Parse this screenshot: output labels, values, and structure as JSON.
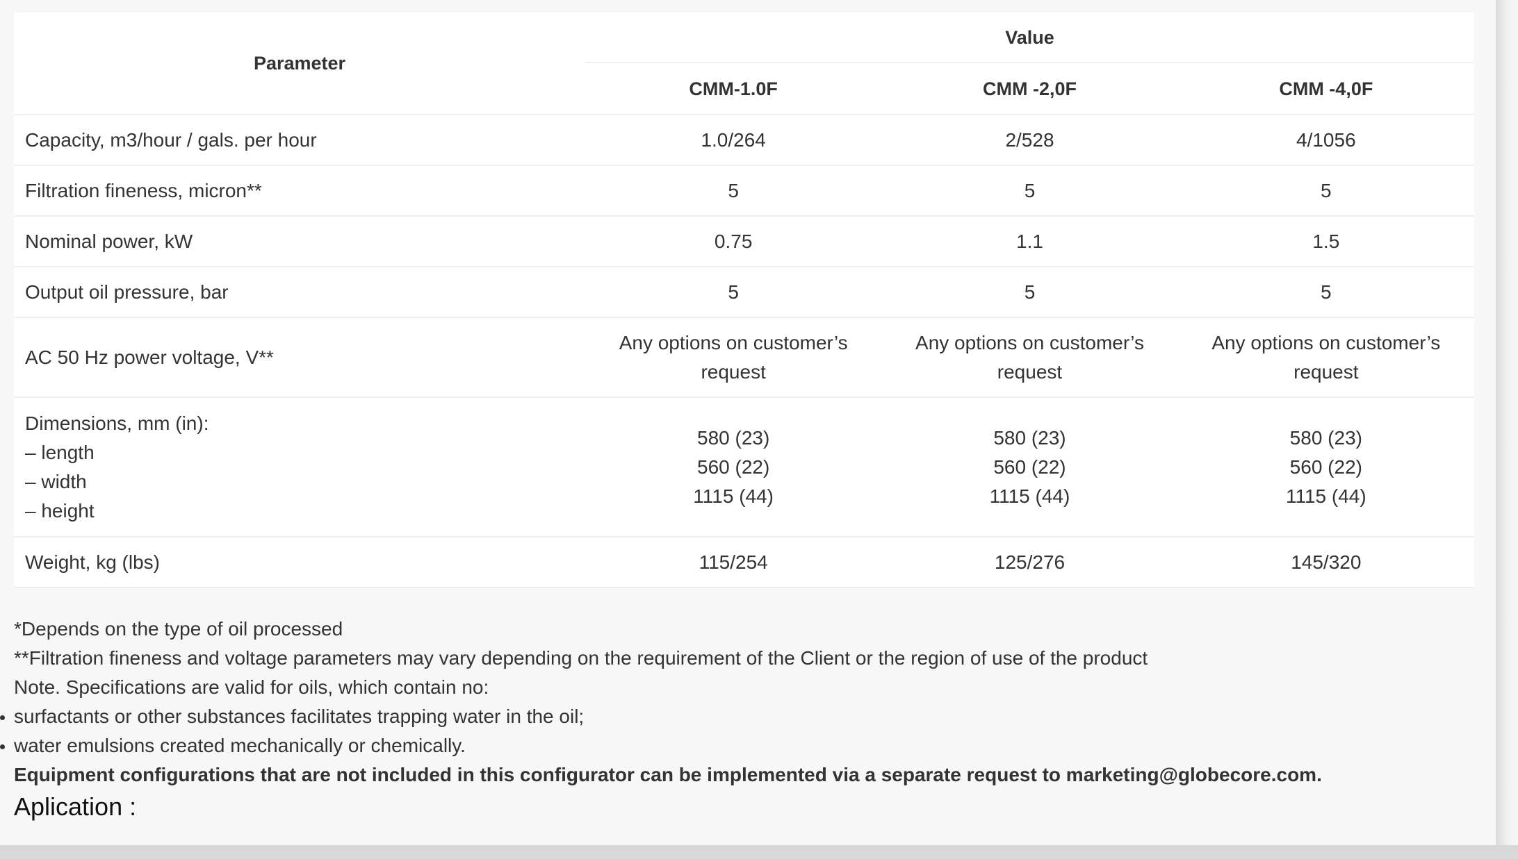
{
  "table": {
    "header": {
      "parameter": "Parameter",
      "value": "Value",
      "models": [
        "CMM-1.0F",
        "CMM -2,0F",
        "CMM -4,0F"
      ]
    },
    "rows": [
      {
        "param": "Capacity, m3/hour / gals. per hour",
        "values": [
          "1.0/264",
          "2/528",
          "4/1056"
        ]
      },
      {
        "param": "Filtration fineness, micron**",
        "values": [
          "5",
          "5",
          "5"
        ]
      },
      {
        "param": "Nominal power, kW",
        "values": [
          "0.75",
          "1.1",
          "1.5"
        ]
      },
      {
        "param": "Output oil pressure, bar",
        "values": [
          "5",
          "5",
          "5"
        ]
      },
      {
        "param": "AC 50 Hz power voltage, V**",
        "values": [
          "Any options on customer’s request",
          "Any options on customer’s request",
          "Any options on customer’s request"
        ]
      }
    ],
    "dimensions": {
      "param_lines": [
        "Dimensions, mm (in):",
        "– length",
        "– width",
        "– height"
      ],
      "values": [
        [
          "580 (23)",
          "560 (22)",
          "1115 (44)"
        ],
        [
          "580 (23)",
          "560 (22)",
          "1115 (44)"
        ],
        [
          "580 (23)",
          "560 (22)",
          "1115 (44)"
        ]
      ]
    },
    "weight": {
      "param": "Weight, kg (lbs)",
      "values": [
        "115/254",
        "125/276",
        "145/320"
      ]
    }
  },
  "notes": {
    "line1": "*Depends on the type of oil processed",
    "line2": "**Filtration fineness and voltage parameters may vary depending on the requirement of the Client or the region of use of the product",
    "line3": "Note. Specifications are valid for oils, which contain no:",
    "bullets": [
      "surfactants or other substances facilitates trapping water in the oil;",
      "water emulsions created mechanically or chemically."
    ],
    "bold": "Equipment configurations that are not included in this configurator can be implemented via a separate request to marketing@globecore.com.",
    "application": "Aplication :"
  }
}
